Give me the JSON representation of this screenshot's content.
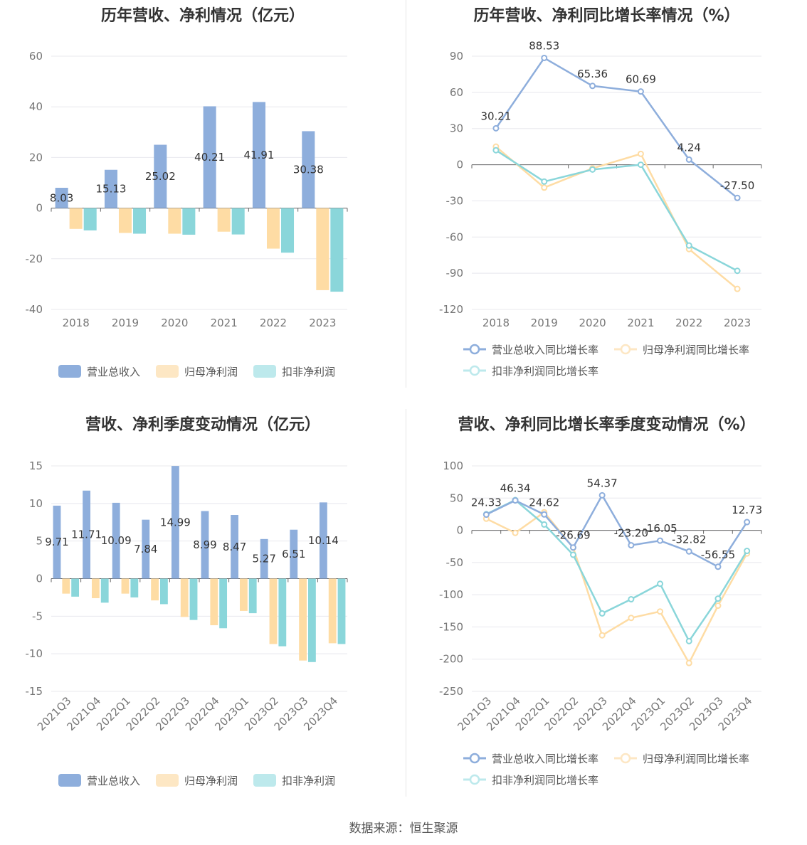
{
  "source": "数据来源：恒生聚源",
  "colors": {
    "revenue": "#8eaedc",
    "net_profit": "#fedca4",
    "deducted_profit": "#8ad6da",
    "axis": "#666666",
    "grid": "#e8e8ee"
  },
  "chart_data": [
    {
      "id": "annual_amount",
      "type": "bar",
      "title": "历年营收、净利情况（亿元）",
      "categories": [
        "2018",
        "2019",
        "2020",
        "2021",
        "2022",
        "2023"
      ],
      "ylim": [
        -40,
        60
      ],
      "yticks": [
        -40,
        -20,
        0,
        20,
        40,
        60
      ],
      "legend_position": "bottom",
      "series": [
        {
          "name": "营业总收入",
          "values": [
            8.03,
            15.13,
            25.02,
            40.21,
            41.91,
            30.38
          ],
          "labels": [
            "8.03",
            "15.13",
            "25.02",
            "40.21",
            "41.91",
            "30.38"
          ]
        },
        {
          "name": "归母净利润",
          "values": [
            -8.2,
            -9.8,
            -10.1,
            -9.3,
            -16.0,
            -32.4
          ]
        },
        {
          "name": "扣非净利润",
          "values": [
            -8.8,
            -10.1,
            -10.5,
            -10.4,
            -17.6,
            -33.0
          ]
        }
      ]
    },
    {
      "id": "annual_growth",
      "type": "line",
      "title": "历年营收、净利同比增长率情况（%）",
      "categories": [
        "2018",
        "2019",
        "2020",
        "2021",
        "2022",
        "2023"
      ],
      "ylim": [
        -120,
        90
      ],
      "yticks": [
        -120,
        -90,
        -60,
        -30,
        0,
        30,
        60,
        90
      ],
      "legend_position": "bottom",
      "series": [
        {
          "name": "营业总收入同比增长率",
          "values": [
            30.21,
            88.53,
            65.36,
            60.69,
            4.24,
            -27.5
          ],
          "labels": [
            "30.21",
            "88.53",
            "65.36",
            "60.69",
            "4.24",
            "-27.50"
          ]
        },
        {
          "name": "归母净利润同比增长率",
          "values": [
            15,
            -19,
            -3,
            9,
            -70,
            -103
          ]
        },
        {
          "name": "扣非净利润同比增长率",
          "values": [
            12,
            -14,
            -4,
            0,
            -67,
            -88
          ]
        }
      ]
    },
    {
      "id": "quarterly_amount",
      "type": "bar",
      "title": "营收、净利季度变动情况（亿元）",
      "categories": [
        "2021Q3",
        "2021Q4",
        "2022Q1",
        "2022Q2",
        "2022Q3",
        "2022Q4",
        "2023Q1",
        "2023Q2",
        "2023Q3",
        "2023Q4"
      ],
      "ylim": [
        -15,
        15
      ],
      "yticks": [
        -15,
        -10,
        -5,
        0,
        5,
        10,
        15
      ],
      "legend_position": "bottom",
      "series": [
        {
          "name": "营业总收入",
          "values": [
            9.71,
            11.71,
            10.09,
            7.84,
            14.99,
            8.99,
            8.47,
            5.27,
            6.51,
            10.14
          ],
          "labels": [
            "9.71",
            "11.71",
            "10.09",
            "7.84",
            "14.99",
            "8.99",
            "8.47",
            "5.27",
            "6.51",
            "10.14"
          ]
        },
        {
          "name": "归母净利润",
          "values": [
            -2.0,
            -2.6,
            -2.0,
            -2.9,
            -5.1,
            -6.2,
            -4.3,
            -8.7,
            -10.9,
            -8.6
          ]
        },
        {
          "name": "扣非净利润",
          "values": [
            -2.4,
            -3.2,
            -2.5,
            -3.4,
            -5.5,
            -6.6,
            -4.6,
            -9.0,
            -11.1,
            -8.7
          ]
        }
      ]
    },
    {
      "id": "quarterly_growth",
      "type": "line",
      "title": "营收、净利同比增长率季度变动情况（%）",
      "categories": [
        "2021Q3",
        "2021Q4",
        "2022Q1",
        "2022Q2",
        "2022Q3",
        "2022Q4",
        "2023Q1",
        "2023Q2",
        "2023Q3",
        "2023Q4"
      ],
      "ylim": [
        -250,
        100
      ],
      "yticks": [
        -250,
        -200,
        -150,
        -100,
        -50,
        0,
        50,
        100
      ],
      "legend_position": "bottom",
      "series": [
        {
          "name": "营业总收入同比增长率",
          "values": [
            24.33,
            46.34,
            24.62,
            -26.69,
            54.37,
            -23.2,
            -16.05,
            -32.82,
            -56.55,
            12.73
          ],
          "labels": [
            "24.33",
            "46.34",
            "24.62",
            "-26.69",
            "54.37",
            "-23.20",
            "-16.05",
            "-32.82",
            "-56.55",
            "12.73"
          ]
        },
        {
          "name": "归母净利润同比增长率",
          "values": [
            18,
            -4,
            28,
            -27,
            -163,
            -136,
            -126,
            -206,
            -117,
            -36
          ]
        },
        {
          "name": "扣非净利润同比增长率",
          "values": [
            25,
            47,
            9,
            -38,
            -129,
            -107,
            -83,
            -172,
            -106,
            -32
          ]
        }
      ]
    }
  ]
}
